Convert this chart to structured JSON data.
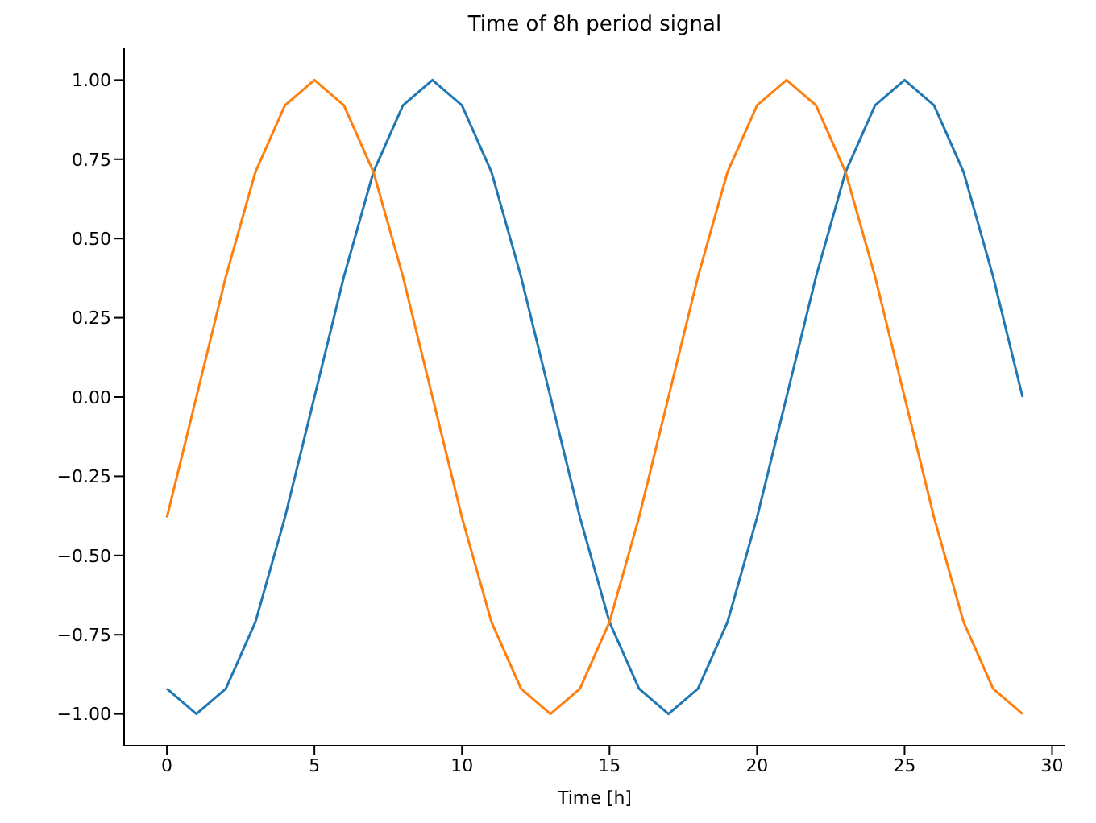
{
  "chart_data": {
    "type": "line",
    "title": "Time of 8h period signal",
    "xlabel": "Time [h]",
    "x": [
      0,
      1,
      2,
      3,
      4,
      5,
      6,
      7,
      8,
      9,
      10,
      11,
      12,
      13,
      14,
      15,
      16,
      17,
      18,
      19,
      20,
      21,
      22,
      23,
      24,
      25,
      26,
      27,
      28,
      29
    ],
    "series": [
      {
        "color": "#1f77b4",
        "values": [
          -0.92,
          -1,
          -0.92,
          -0.71,
          -0.38,
          0,
          0.38,
          0.71,
          0.92,
          1,
          0.92,
          0.71,
          0.38,
          0,
          -0.38,
          -0.71,
          -0.92,
          -1,
          -0.92,
          -0.71,
          -0.38,
          0,
          0.38,
          0.71,
          0.92,
          1,
          0.92,
          0.71,
          0.38,
          0
        ]
      },
      {
        "color": "#ff7f0e",
        "values": [
          -0.38,
          0,
          0.38,
          0.71,
          0.92,
          1,
          0.92,
          0.71,
          0.38,
          0,
          -0.38,
          -0.71,
          -0.92,
          -1,
          -0.92,
          -0.71,
          -0.38,
          0,
          0.38,
          0.71,
          0.92,
          1,
          0.92,
          0.71,
          0.38,
          0,
          -0.38,
          -0.71,
          -0.92,
          -1
        ]
      }
    ],
    "xlim": [
      -1.45,
      30.45
    ],
    "ylim": [
      -1.1,
      1.1
    ],
    "xticks": [
      0,
      5,
      10,
      15,
      20,
      25,
      30
    ],
    "yticks": [
      {
        "value": -1,
        "label": "−1.00"
      },
      {
        "value": -0.75,
        "label": "−0.75"
      },
      {
        "value": -0.5,
        "label": "−0.50"
      },
      {
        "value": -0.25,
        "label": "−0.25"
      },
      {
        "value": 0,
        "label": "0.00"
      },
      {
        "value": 0.25,
        "label": "0.25"
      },
      {
        "value": 0.5,
        "label": "0.50"
      },
      {
        "value": 0.75,
        "label": "0.75"
      },
      {
        "value": 1,
        "label": "1.00"
      }
    ],
    "grid": false,
    "legend": false,
    "marker": "none",
    "line_style": "solid"
  }
}
